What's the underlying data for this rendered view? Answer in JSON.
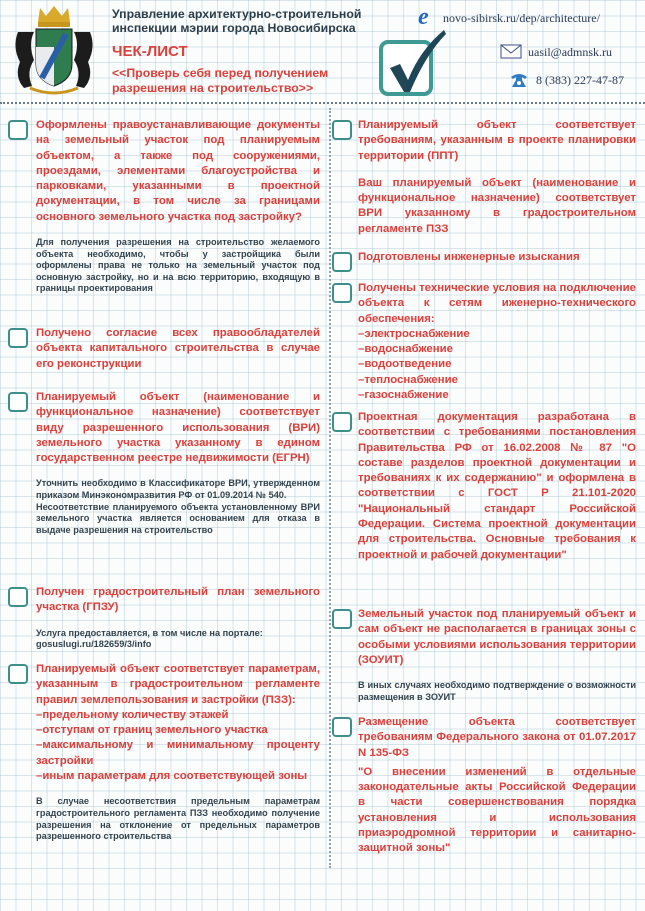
{
  "header": {
    "org_line1": "Управление архитектурно-строительной",
    "org_line2": "инспекции мэрии города Новосибирска",
    "title": "ЧЕК-ЛИСТ",
    "subtitle_line1": "<<Проверь себя перед получением",
    "subtitle_line2": "разрешения на строительство>>",
    "website": "novo-sibirsk.ru/dep/architecture/",
    "email": "uasil@admnsk.ru",
    "phone": "8 (383) 227-47-87"
  },
  "colors": {
    "accent_red": "#d8413c",
    "checkbox_teal": "#3e8f8b",
    "note_gray": "#34444f"
  },
  "left_items": [
    {
      "blocks": [
        {
          "kind": "red",
          "text": "Оформлены правоустанавливающие документы на земельный участок под планируемым объектом, а также под сооружениями, проездами, элементами благоустройства и парковками, указанными в проектной документации, в том числе за границами основного земельного участка под застройку?"
        },
        {
          "kind": "note",
          "text": "Для получения разрешения на строительство желаемого объекта необходимо, чтобы у застройщика были оформлены права не только на земельный участок под основную застройку, но и на всю территорию, входящую в границы проектирования"
        }
      ]
    },
    {
      "blocks": [
        {
          "kind": "red",
          "text": "Получено согласие всех правообладателей объекта капитального строительства в случае его реконструкции"
        }
      ]
    },
    {
      "blocks": [
        {
          "kind": "red",
          "text": "Планируемый объект (наименование и функциональное назначение) соответствует виду разрешенного использования (ВРИ) земельного участка указанному в едином государственном реестре недвижимости (ЕГРН)"
        },
        {
          "kind": "note",
          "text": "Уточнить необходимо в Классификаторе ВРИ, утвержденном приказом Минэкономразвития РФ от 01.09.2014 № 540."
        },
        {
          "kind": "note",
          "text": "Несоответствие планируемого объекта установленному ВРИ земельного участка является основанием для отказа в выдаче разрешения на строительство"
        }
      ]
    },
    {
      "blocks": [
        {
          "kind": "red",
          "text": "Получен градостроительный план земельного участка (ГПЗУ)"
        },
        {
          "kind": "note",
          "text": "Услуга предоставляется, в том числе на портале:"
        },
        {
          "kind": "note",
          "text": "gosuslugi.ru/182659/3/info"
        }
      ]
    },
    {
      "blocks": [
        {
          "kind": "red",
          "text": "Планируемый объект соответствует параметрам, указанным в градостроительном регламенте правил землепользования и застройки (ПЗЗ):"
        },
        {
          "kind": "red",
          "text": "–предельному количеству этажей"
        },
        {
          "kind": "red",
          "text": "–отступам от границ земельного участка"
        },
        {
          "kind": "red",
          "text": "–максимальному и минимальному проценту застройки"
        },
        {
          "kind": "red",
          "text": "–иным параметрам для соответствующей зоны"
        },
        {
          "kind": "note",
          "text": "В случае несоответствия предельным параметрам градостроительного регламента ПЗЗ необходимо получение разрешения на отклонение от предельных параметров разрешенного строительства"
        }
      ]
    }
  ],
  "right_items": [
    {
      "blocks": [
        {
          "kind": "red",
          "text": "Планируемый объект соответствует требованиям, указанным в проекте планировки территории (ППТ)"
        },
        {
          "kind": "red",
          "text": "Ваш планируемый объект (наименование и функциональное назначение) соответствует ВРИ указанному в градостроительном регламенте ПЗЗ"
        }
      ]
    },
    {
      "blocks": [
        {
          "kind": "red",
          "text": "Подготовлены инженерные изыскания"
        }
      ]
    },
    {
      "blocks": [
        {
          "kind": "red",
          "text": "Получены технические условия на подключение объекта к сетям иженерно-технического обеспечения:"
        },
        {
          "kind": "red",
          "text": "–электроснабжение"
        },
        {
          "kind": "red",
          "text": "–водоснабжение"
        },
        {
          "kind": "red",
          "text": "–водоотведение"
        },
        {
          "kind": "red",
          "text": "–теплоснабжение"
        },
        {
          "kind": "red",
          "text": "–газоснабжение"
        }
      ]
    },
    {
      "blocks": [
        {
          "kind": "red",
          "text": "Проектная документация разработана в соответствии с требованиями постановления Правительства РФ от 16.02.2008 № 87 \"О составе разделов проектной документации и требованиях к их содержанию\" и оформлена в соответствии с ГОСТ Р 21.101-2020 \"Национальный стандарт Российской Федерации. Система проектной документации для строительства. Основные требования к проектной и рабочей документации\""
        }
      ]
    },
    {
      "blocks": [
        {
          "kind": "red",
          "text": "Земельный участок под планируемый объект и сам объект не располагается в границах зоны с особыми условиями использования территории (ЗОУИТ)"
        },
        {
          "kind": "note",
          "text": "В иных случаях необходимо подтверждение о возможности размещения в ЗОУИТ"
        }
      ]
    },
    {
      "blocks": [
        {
          "kind": "red",
          "text": "Размещение объекта соответствует требованиям Федерального закона от 01.07.2017 N 135-ФЗ"
        },
        {
          "kind": "red",
          "text": "\"О внесении изменений в отдельные законодательные акты Российской Федерации в части совершенствования порядка установления и использования приаэродромной территории и санитарно-защитной зоны\""
        }
      ]
    }
  ]
}
